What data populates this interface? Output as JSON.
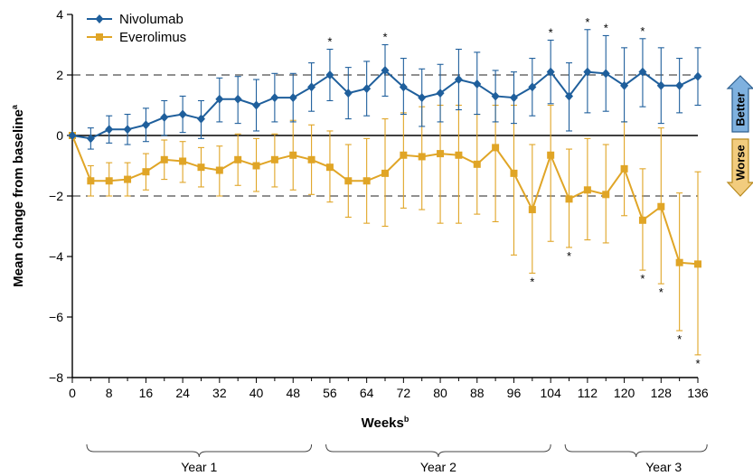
{
  "chart_data": {
    "type": "line",
    "xlabel": "Weeks",
    "xlabel_sup": "b",
    "ylabel": "Mean change from baseline",
    "ylabel_sup": "a",
    "xlim": [
      0,
      136
    ],
    "ylim": [
      -8,
      4
    ],
    "x_ticks": [
      0,
      8,
      16,
      24,
      32,
      40,
      48,
      56,
      64,
      72,
      80,
      88,
      96,
      104,
      112,
      120,
      128,
      136
    ],
    "y_ticks": [
      -8,
      -6,
      -4,
      -2,
      0,
      2,
      4
    ],
    "reference_lines": [
      2,
      -2
    ],
    "legend_placement": "top-left",
    "series": [
      {
        "name": "Nivolumab",
        "color": "#1f5f9c",
        "marker": "diamond",
        "points": [
          {
            "x": 0,
            "y": 0,
            "lo": 0,
            "hi": 0
          },
          {
            "x": 4,
            "y": -0.1,
            "lo": -0.45,
            "hi": 0.25
          },
          {
            "x": 8,
            "y": 0.2,
            "lo": -0.25,
            "hi": 0.65
          },
          {
            "x": 12,
            "y": 0.2,
            "lo": -0.3,
            "hi": 0.7
          },
          {
            "x": 16,
            "y": 0.35,
            "lo": -0.2,
            "hi": 0.9
          },
          {
            "x": 20,
            "y": 0.6,
            "lo": 0.0,
            "hi": 1.15
          },
          {
            "x": 24,
            "y": 0.7,
            "lo": 0.1,
            "hi": 1.3
          },
          {
            "x": 28,
            "y": 0.55,
            "lo": -0.1,
            "hi": 1.15
          },
          {
            "x": 32,
            "y": 1.2,
            "lo": 0.45,
            "hi": 1.9
          },
          {
            "x": 36,
            "y": 1.2,
            "lo": 0.4,
            "hi": 1.95
          },
          {
            "x": 40,
            "y": 1.0,
            "lo": 0.15,
            "hi": 1.85
          },
          {
            "x": 44,
            "y": 1.25,
            "lo": 0.45,
            "hi": 2.05
          },
          {
            "x": 48,
            "y": 1.25,
            "lo": 0.45,
            "hi": 2.05
          },
          {
            "x": 52,
            "y": 1.6,
            "lo": 0.8,
            "hi": 2.4
          },
          {
            "x": 56,
            "y": 2.0,
            "lo": 1.15,
            "hi": 2.85,
            "star": "above"
          },
          {
            "x": 60,
            "y": 1.4,
            "lo": 0.55,
            "hi": 2.25
          },
          {
            "x": 64,
            "y": 1.55,
            "lo": 0.65,
            "hi": 2.45
          },
          {
            "x": 68,
            "y": 2.15,
            "lo": 1.3,
            "hi": 3.0,
            "star": "above"
          },
          {
            "x": 72,
            "y": 1.6,
            "lo": 0.7,
            "hi": 2.55
          },
          {
            "x": 76,
            "y": 1.25,
            "lo": 0.3,
            "hi": 2.2
          },
          {
            "x": 80,
            "y": 1.4,
            "lo": 0.45,
            "hi": 2.35
          },
          {
            "x": 84,
            "y": 1.85,
            "lo": 0.85,
            "hi": 2.85
          },
          {
            "x": 88,
            "y": 1.7,
            "lo": 0.7,
            "hi": 2.75
          },
          {
            "x": 92,
            "y": 1.3,
            "lo": 0.45,
            "hi": 2.15
          },
          {
            "x": 96,
            "y": 1.25,
            "lo": 0.4,
            "hi": 2.1
          },
          {
            "x": 100,
            "y": 1.6,
            "lo": 0.65,
            "hi": 2.55
          },
          {
            "x": 104,
            "y": 2.1,
            "lo": 1.05,
            "hi": 3.15,
            "star": "above"
          },
          {
            "x": 108,
            "y": 1.3,
            "lo": 0.15,
            "hi": 2.4
          },
          {
            "x": 112,
            "y": 2.1,
            "lo": 0.75,
            "hi": 3.5,
            "star": "above"
          },
          {
            "x": 116,
            "y": 2.05,
            "lo": 0.8,
            "hi": 3.3,
            "star": "above"
          },
          {
            "x": 120,
            "y": 1.65,
            "lo": 0.45,
            "hi": 2.9
          },
          {
            "x": 124,
            "y": 2.1,
            "lo": 0.95,
            "hi": 3.2,
            "star": "above"
          },
          {
            "x": 128,
            "y": 1.65,
            "lo": 0.4,
            "hi": 2.9
          },
          {
            "x": 132,
            "y": 1.65,
            "lo": 0.75,
            "hi": 2.55
          },
          {
            "x": 136,
            "y": 1.95,
            "lo": 1.0,
            "hi": 2.9
          }
        ]
      },
      {
        "name": "Everolimus",
        "color": "#e0a526",
        "marker": "square",
        "points": [
          {
            "x": 0,
            "y": 0,
            "lo": 0,
            "hi": 0
          },
          {
            "x": 4,
            "y": -1.5,
            "lo": -2.0,
            "hi": -1.0
          },
          {
            "x": 8,
            "y": -1.5,
            "lo": -2.0,
            "hi": -0.9
          },
          {
            "x": 12,
            "y": -1.45,
            "lo": -2.0,
            "hi": -0.9
          },
          {
            "x": 16,
            "y": -1.2,
            "lo": -1.8,
            "hi": -0.6
          },
          {
            "x": 20,
            "y": -0.8,
            "lo": -1.45,
            "hi": -0.15
          },
          {
            "x": 24,
            "y": -0.85,
            "lo": -1.55,
            "hi": -0.2
          },
          {
            "x": 28,
            "y": -1.05,
            "lo": -1.7,
            "hi": -0.4
          },
          {
            "x": 32,
            "y": -1.15,
            "lo": -2.0,
            "hi": -0.35
          },
          {
            "x": 36,
            "y": -0.8,
            "lo": -1.65,
            "hi": 0.05
          },
          {
            "x": 40,
            "y": -1.0,
            "lo": -1.85,
            "hi": -0.1
          },
          {
            "x": 44,
            "y": -0.8,
            "lo": -1.7,
            "hi": 0.05
          },
          {
            "x": 48,
            "y": -0.65,
            "lo": -1.8,
            "hi": 0.5
          },
          {
            "x": 52,
            "y": -0.8,
            "lo": -1.95,
            "hi": 0.35
          },
          {
            "x": 56,
            "y": -1.05,
            "lo": -2.2,
            "hi": 0.15
          },
          {
            "x": 60,
            "y": -1.5,
            "lo": -2.7,
            "hi": -0.3
          },
          {
            "x": 64,
            "y": -1.5,
            "lo": -2.9,
            "hi": -0.1
          },
          {
            "x": 68,
            "y": -1.25,
            "lo": -3.0,
            "hi": 0.55
          },
          {
            "x": 72,
            "y": -0.65,
            "lo": -2.4,
            "hi": 0.75
          },
          {
            "x": 76,
            "y": -0.7,
            "lo": -2.45,
            "hi": 0.95
          },
          {
            "x": 80,
            "y": -0.6,
            "lo": -2.9,
            "hi": 1.0
          },
          {
            "x": 84,
            "y": -0.65,
            "lo": -2.9,
            "hi": 1.0
          },
          {
            "x": 88,
            "y": -0.95,
            "lo": -2.6,
            "hi": 0.7
          },
          {
            "x": 92,
            "y": -0.4,
            "lo": -2.85,
            "hi": 1.0
          },
          {
            "x": 96,
            "y": -1.25,
            "lo": -3.95,
            "hi": 1.0
          },
          {
            "x": 100,
            "y": -2.45,
            "lo": -4.55,
            "hi": -0.3,
            "star": "below"
          },
          {
            "x": 104,
            "y": -0.65,
            "lo": -3.5,
            "hi": 1.0
          },
          {
            "x": 108,
            "y": -2.1,
            "lo": -3.7,
            "hi": -0.45,
            "star": "below"
          },
          {
            "x": 112,
            "y": -1.8,
            "lo": -3.45,
            "hi": -0.1
          },
          {
            "x": 116,
            "y": -1.95,
            "lo": -3.55,
            "hi": -0.3
          },
          {
            "x": 120,
            "y": -1.1,
            "lo": -2.65,
            "hi": 0.45
          },
          {
            "x": 124,
            "y": -2.8,
            "lo": -4.45,
            "hi": -1.1,
            "star": "below"
          },
          {
            "x": 128,
            "y": -2.35,
            "lo": -4.9,
            "hi": 0.25,
            "star": "below"
          },
          {
            "x": 132,
            "y": -4.2,
            "lo": -6.45,
            "hi": -1.9,
            "star": "below"
          },
          {
            "x": 136,
            "y": -4.25,
            "lo": -7.25,
            "hi": -1.2,
            "star": "below"
          }
        ]
      }
    ],
    "star_symbol": "*",
    "year_brackets": [
      {
        "label": "Year 1",
        "from": 0,
        "to": 52
      },
      {
        "label": "Year 2",
        "from": 52,
        "to": 104
      },
      {
        "label": "Year 3",
        "from": 104,
        "to": 138
      }
    ],
    "direction_arrows": {
      "up_label": "Better",
      "up_color": "#7fb1df",
      "down_label": "Worse",
      "down_color": "#f2cc7e"
    }
  }
}
